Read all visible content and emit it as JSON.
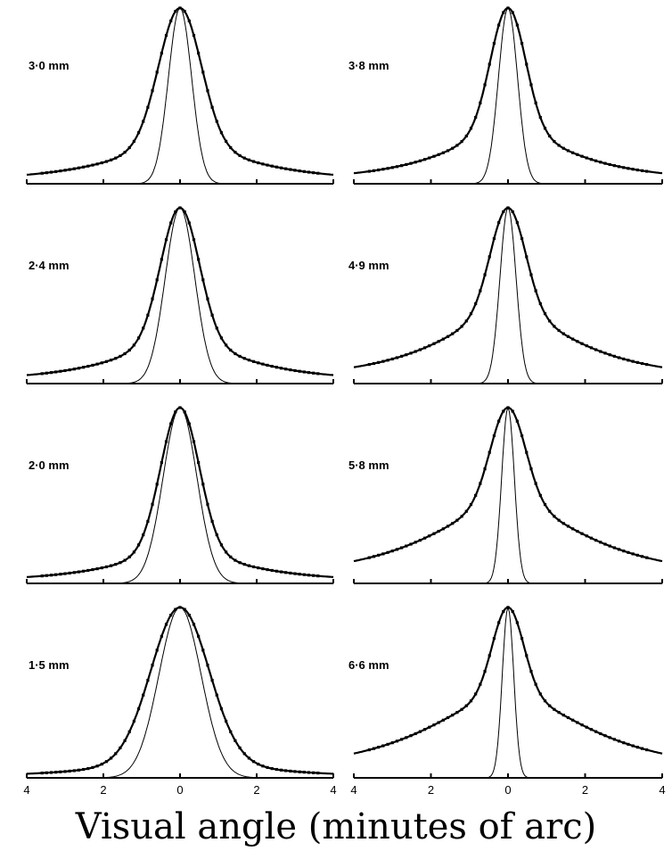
{
  "figure": {
    "xlabel": "Visual angle (minutes of arc)"
  },
  "chart_data": {
    "type": "line",
    "xlabel": "Visual angle (minutes of arc)",
    "ylabel": "",
    "xlim": [
      -4,
      4
    ],
    "xtick_labels": [
      "4",
      "2",
      "0",
      "2",
      "4"
    ],
    "grid": false,
    "panels": [
      {
        "label": "3·0 mm",
        "measured_halfwidth": 0.55,
        "measured_wing": 0.22,
        "measured_wing_scale": 2.2,
        "diffraction_halfwidth": 0.55
      },
      {
        "label": "2·4 mm",
        "measured_halfwidth": 0.5,
        "measured_wing": 0.24,
        "measured_wing_scale": 2.0,
        "diffraction_halfwidth": 0.7
      },
      {
        "label": "2·0 mm",
        "measured_halfwidth": 0.5,
        "measured_wing": 0.18,
        "measured_wing_scale": 2.0,
        "diffraction_halfwidth": 0.8
      },
      {
        "label": "1·5 mm",
        "measured_halfwidth": 0.75,
        "measured_wing": 0.12,
        "measured_wing_scale": 2.0,
        "diffraction_halfwidth": 1.0
      },
      {
        "label": "3·8 mm",
        "measured_halfwidth": 0.45,
        "measured_wing": 0.3,
        "measured_wing_scale": 2.0,
        "diffraction_halfwidth": 0.45
      },
      {
        "label": "4·9 mm",
        "measured_halfwidth": 0.45,
        "measured_wing": 0.4,
        "measured_wing_scale": 2.2,
        "diffraction_halfwidth": 0.38
      },
      {
        "label": "5·8 mm",
        "measured_halfwidth": 0.45,
        "measured_wing": 0.45,
        "measured_wing_scale": 2.5,
        "diffraction_halfwidth": 0.3
      },
      {
        "label": "6·6 mm",
        "measured_halfwidth": 0.4,
        "measured_wing": 0.48,
        "measured_wing_scale": 2.6,
        "diffraction_halfwidth": 0.27
      }
    ]
  }
}
